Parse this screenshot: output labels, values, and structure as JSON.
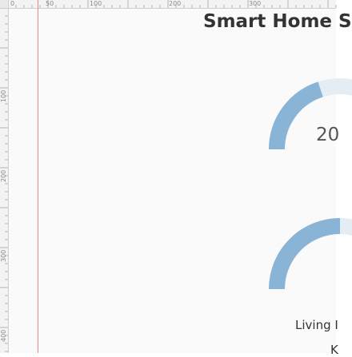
{
  "rulers": {
    "top_labels": [
      "0",
      "50",
      "100",
      "200",
      "300"
    ],
    "left_labels": [
      "100",
      "200",
      "300",
      "400"
    ]
  },
  "dashboard": {
    "title": "Smart Home S"
  },
  "gauges": [
    {
      "name": "gauge-1",
      "value_text": "20",
      "fill_fraction": 0.4
    },
    {
      "name": "gauge-2",
      "label": "Living I",
      "sublabel": "K",
      "fill_fraction": 0.5
    }
  ],
  "colors": {
    "gauge_fill": "#8ab4d6",
    "gauge_track": "#e4ecf4",
    "guide_line": "#e58a8a"
  }
}
